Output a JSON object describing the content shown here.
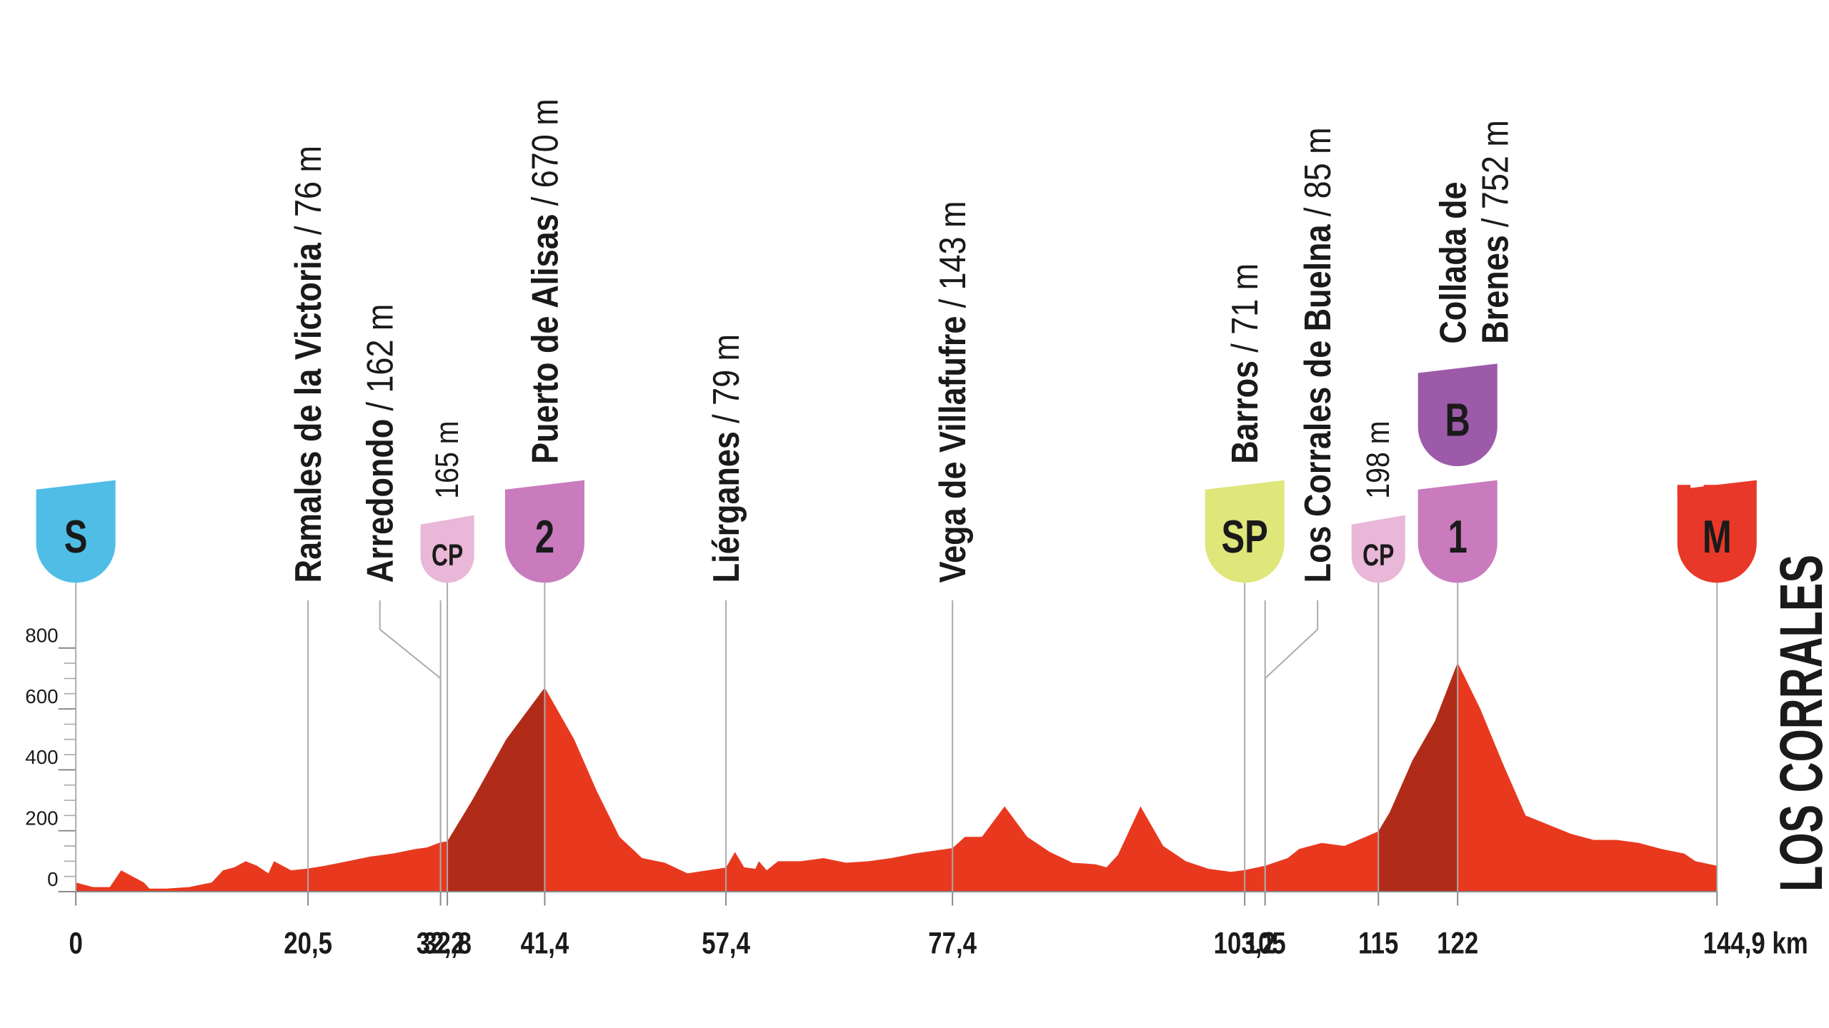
{
  "chart_data": {
    "type": "area",
    "color": "#e8391f",
    "climb_color": "#b02c18",
    "x": [
      0,
      1.5,
      3,
      4,
      5,
      6,
      6.5,
      8,
      10,
      12,
      13,
      14,
      15,
      16,
      17,
      17.5,
      18,
      19,
      20.5,
      22,
      24,
      26,
      28,
      30,
      31,
      32.2,
      32.8,
      35,
      38,
      41.4,
      44,
      46,
      48,
      50,
      52,
      54,
      57.4,
      58.2,
      59,
      60,
      60.3,
      61,
      62,
      64,
      66,
      68,
      70,
      72,
      74,
      77.4,
      78.5,
      80,
      82,
      84,
      86,
      88,
      90,
      91,
      92,
      94,
      96,
      98,
      100,
      102,
      103.2,
      105,
      107,
      108,
      110,
      112,
      115,
      116,
      118,
      120,
      122,
      124,
      126,
      128,
      130,
      132,
      134,
      136,
      138,
      140,
      142,
      143,
      144.9
    ],
    "values": [
      30,
      15,
      15,
      70,
      50,
      30,
      10,
      10,
      15,
      30,
      70,
      80,
      100,
      85,
      60,
      100,
      90,
      70,
      76,
      85,
      100,
      115,
      125,
      140,
      145,
      162,
      165,
      300,
      500,
      670,
      500,
      330,
      180,
      110,
      95,
      60,
      79,
      130,
      80,
      75,
      100,
      70,
      100,
      100,
      110,
      95,
      100,
      110,
      125,
      143,
      180,
      180,
      280,
      180,
      130,
      95,
      90,
      80,
      120,
      280,
      150,
      100,
      75,
      65,
      71,
      85,
      110,
      140,
      160,
      150,
      198,
      260,
      430,
      560,
      752,
      600,
      420,
      250,
      220,
      190,
      170,
      170,
      160,
      140,
      125,
      100,
      85
    ],
    "xlim": [
      0,
      144.9
    ],
    "ylim": [
      0,
      800
    ],
    "yticks": [
      0,
      200,
      400,
      600,
      800
    ],
    "xticks": [
      0,
      {
        "value": 20.5,
        "label": "20,5"
      },
      {
        "value": 32.2,
        "label": "32,2"
      },
      {
        "value": 32.8,
        "label": "32,8"
      },
      {
        "value": 41.4,
        "label": "41,4"
      },
      {
        "value": 57.4,
        "label": "57,4"
      },
      {
        "value": 77.4,
        "label": "77,4"
      },
      {
        "value": 103.2,
        "label": "103,2"
      },
      105,
      115,
      122,
      {
        "value": 144.9,
        "label": "144,9 km"
      }
    ],
    "finish": "LOS CORRALES",
    "waypoints": [
      {
        "km": 0,
        "badge": "S",
        "badge_color": "#4fbde6"
      },
      {
        "km": 20.5,
        "name": "Ramales de la Victoria",
        "altitude": "/ 76 m"
      },
      {
        "km": 32.2,
        "name": "Arredondo",
        "altitude": "/ 162 m"
      },
      {
        "km": 32.8,
        "badge": "CP",
        "badge_color": "#e9b7d8",
        "altitude": "165 m"
      },
      {
        "km": 41.4,
        "name": "Puerto de Alisas",
        "altitude": "/ 670 m",
        "badge": "2",
        "badge_color": "#c97bbd"
      },
      {
        "km": 57.4,
        "name": "Liérganes",
        "altitude": "/ 79 m"
      },
      {
        "km": 77.4,
        "name": "Vega de Villafufre",
        "altitude": "/ 143 m"
      },
      {
        "km": 103.2,
        "name": "Barros",
        "altitude": "/ 71 m",
        "badge": "SP",
        "badge_color": "#dfe67a"
      },
      {
        "km": 105,
        "name": "Los Corrales de Buelna",
        "altitude": "/ 85 m"
      },
      {
        "km": 115,
        "badge": "CP",
        "badge_color": "#e9b7d8",
        "altitude": "198 m"
      },
      {
        "km": 122,
        "name": [
          "Collada de",
          "Brenes"
        ],
        "altitude": "/ 752 m",
        "badge": "1",
        "badge_color": "#c97bbd",
        "badge2": "B",
        "badge2_color": "#9c5aa9"
      },
      {
        "km": 144.9,
        "badge": "M",
        "badge_color": "#e8382a"
      }
    ]
  }
}
